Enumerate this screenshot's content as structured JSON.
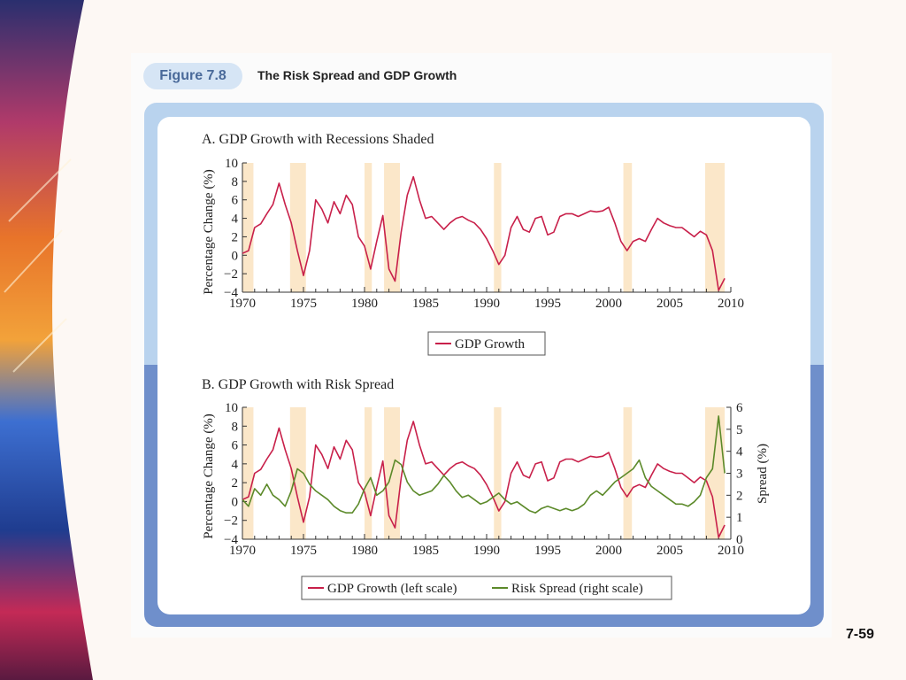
{
  "slide": {
    "page_number": "7-59"
  },
  "figure": {
    "badge": "Figure 7.8",
    "title": "The Risk Spread and GDP Growth"
  },
  "colors": {
    "gdp_line": "#c8204a",
    "spread_line": "#5c8a2a",
    "recession": "#fbe7c9",
    "panel_top": "#b9d3ee",
    "panel_bottom": "#6f8fcb"
  },
  "chart_data": [
    {
      "type": "line",
      "title": "A. GDP Growth with Recessions Shaded",
      "xlabel": "",
      "ylabel": "Percentage Change (%)",
      "xlim": [
        1970,
        2010
      ],
      "ylim": [
        -4,
        10
      ],
      "x_ticks": [
        "1970",
        "1975",
        "1980",
        "1985",
        "1990",
        "1995",
        "2000",
        "2005",
        "2010"
      ],
      "y_ticks": [
        "10",
        "8",
        "6",
        "4",
        "2",
        "0",
        "−2",
        "−4"
      ],
      "recessions": [
        [
          1970.0,
          1970.9
        ],
        [
          1973.9,
          1975.2
        ],
        [
          1980.0,
          1980.6
        ],
        [
          1981.6,
          1982.9
        ],
        [
          1990.6,
          1991.2
        ],
        [
          2001.2,
          2001.9
        ],
        [
          2007.9,
          2009.5
        ]
      ],
      "legend": [
        "GDP Growth"
      ],
      "legend_position": "bottom",
      "series": [
        {
          "name": "GDP Growth",
          "values": [
            [
              1970.0,
              0.2
            ],
            [
              1970.5,
              0.5
            ],
            [
              1971.0,
              3.0
            ],
            [
              1971.5,
              3.4
            ],
            [
              1972.0,
              4.5
            ],
            [
              1972.5,
              5.5
            ],
            [
              1973.0,
              7.8
            ],
            [
              1973.5,
              5.5
            ],
            [
              1974.0,
              3.5
            ],
            [
              1974.5,
              0.5
            ],
            [
              1975.0,
              -2.2
            ],
            [
              1975.5,
              0.5
            ],
            [
              1976.0,
              6.0
            ],
            [
              1976.5,
              5.0
            ],
            [
              1977.0,
              3.5
            ],
            [
              1977.5,
              5.8
            ],
            [
              1978.0,
              4.5
            ],
            [
              1978.5,
              6.5
            ],
            [
              1979.0,
              5.5
            ],
            [
              1979.5,
              2.0
            ],
            [
              1980.0,
              1.0
            ],
            [
              1980.5,
              -1.5
            ],
            [
              1981.0,
              1.5
            ],
            [
              1981.5,
              4.3
            ],
            [
              1982.0,
              -1.5
            ],
            [
              1982.5,
              -2.8
            ],
            [
              1983.0,
              2.5
            ],
            [
              1983.5,
              6.5
            ],
            [
              1984.0,
              8.5
            ],
            [
              1984.5,
              6.0
            ],
            [
              1985.0,
              4.0
            ],
            [
              1985.5,
              4.2
            ],
            [
              1986.0,
              3.5
            ],
            [
              1986.5,
              2.8
            ],
            [
              1987.0,
              3.5
            ],
            [
              1987.5,
              4.0
            ],
            [
              1988.0,
              4.2
            ],
            [
              1988.5,
              3.8
            ],
            [
              1989.0,
              3.5
            ],
            [
              1989.5,
              2.8
            ],
            [
              1990.0,
              1.8
            ],
            [
              1990.5,
              0.5
            ],
            [
              1991.0,
              -1.0
            ],
            [
              1991.5,
              0.0
            ],
            [
              1992.0,
              3.0
            ],
            [
              1992.5,
              4.2
            ],
            [
              1993.0,
              2.8
            ],
            [
              1993.5,
              2.5
            ],
            [
              1994.0,
              4.0
            ],
            [
              1994.5,
              4.2
            ],
            [
              1995.0,
              2.2
            ],
            [
              1995.5,
              2.5
            ],
            [
              1996.0,
              4.2
            ],
            [
              1996.5,
              4.5
            ],
            [
              1997.0,
              4.5
            ],
            [
              1997.5,
              4.2
            ],
            [
              1998.0,
              4.5
            ],
            [
              1998.5,
              4.8
            ],
            [
              1999.0,
              4.7
            ],
            [
              1999.5,
              4.8
            ],
            [
              2000.0,
              5.2
            ],
            [
              2000.5,
              3.5
            ],
            [
              2001.0,
              1.5
            ],
            [
              2001.5,
              0.5
            ],
            [
              2002.0,
              1.5
            ],
            [
              2002.5,
              1.8
            ],
            [
              2003.0,
              1.5
            ],
            [
              2003.5,
              2.8
            ],
            [
              2004.0,
              4.0
            ],
            [
              2004.5,
              3.5
            ],
            [
              2005.0,
              3.2
            ],
            [
              2005.5,
              3.0
            ],
            [
              2006.0,
              3.0
            ],
            [
              2006.5,
              2.5
            ],
            [
              2007.0,
              2.0
            ],
            [
              2007.5,
              2.6
            ],
            [
              2008.0,
              2.2
            ],
            [
              2008.5,
              0.5
            ],
            [
              2009.0,
              -3.8
            ],
            [
              2009.5,
              -2.5
            ]
          ]
        }
      ]
    },
    {
      "type": "line",
      "title": "B. GDP Growth with Risk Spread",
      "xlabel": "",
      "ylabel": "Percentage Change (%)",
      "y2label": "Spread (%)",
      "xlim": [
        1970,
        2010
      ],
      "ylim": [
        -4,
        10
      ],
      "y2lim": [
        0,
        6
      ],
      "x_ticks": [
        "1970",
        "1975",
        "1980",
        "1985",
        "1990",
        "1995",
        "2000",
        "2005",
        "2010"
      ],
      "y_ticks": [
        "10",
        "8",
        "6",
        "4",
        "2",
        "0",
        "−2",
        "−4"
      ],
      "y2_ticks": [
        "6",
        "5",
        "4",
        "3",
        "2",
        "1",
        "0"
      ],
      "recessions": [
        [
          1970.0,
          1970.9
        ],
        [
          1973.9,
          1975.2
        ],
        [
          1980.0,
          1980.6
        ],
        [
          1981.6,
          1982.9
        ],
        [
          1990.6,
          1991.2
        ],
        [
          2001.2,
          2001.9
        ],
        [
          2007.9,
          2009.5
        ]
      ],
      "legend": [
        "GDP Growth (left scale)",
        "Risk Spread (right scale)"
      ],
      "legend_position": "bottom",
      "series": [
        {
          "name": "GDP Growth (left scale)",
          "axis": "left",
          "values": [
            [
              1970.0,
              0.2
            ],
            [
              1970.5,
              0.5
            ],
            [
              1971.0,
              3.0
            ],
            [
              1971.5,
              3.4
            ],
            [
              1972.0,
              4.5
            ],
            [
              1972.5,
              5.5
            ],
            [
              1973.0,
              7.8
            ],
            [
              1973.5,
              5.5
            ],
            [
              1974.0,
              3.5
            ],
            [
              1974.5,
              0.5
            ],
            [
              1975.0,
              -2.2
            ],
            [
              1975.5,
              0.5
            ],
            [
              1976.0,
              6.0
            ],
            [
              1976.5,
              5.0
            ],
            [
              1977.0,
              3.5
            ],
            [
              1977.5,
              5.8
            ],
            [
              1978.0,
              4.5
            ],
            [
              1978.5,
              6.5
            ],
            [
              1979.0,
              5.5
            ],
            [
              1979.5,
              2.0
            ],
            [
              1980.0,
              1.0
            ],
            [
              1980.5,
              -1.5
            ],
            [
              1981.0,
              1.5
            ],
            [
              1981.5,
              4.3
            ],
            [
              1982.0,
              -1.5
            ],
            [
              1982.5,
              -2.8
            ],
            [
              1983.0,
              2.5
            ],
            [
              1983.5,
              6.5
            ],
            [
              1984.0,
              8.5
            ],
            [
              1984.5,
              6.0
            ],
            [
              1985.0,
              4.0
            ],
            [
              1985.5,
              4.2
            ],
            [
              1986.0,
              3.5
            ],
            [
              1986.5,
              2.8
            ],
            [
              1987.0,
              3.5
            ],
            [
              1987.5,
              4.0
            ],
            [
              1988.0,
              4.2
            ],
            [
              1988.5,
              3.8
            ],
            [
              1989.0,
              3.5
            ],
            [
              1989.5,
              2.8
            ],
            [
              1990.0,
              1.8
            ],
            [
              1990.5,
              0.5
            ],
            [
              1991.0,
              -1.0
            ],
            [
              1991.5,
              0.0
            ],
            [
              1992.0,
              3.0
            ],
            [
              1992.5,
              4.2
            ],
            [
              1993.0,
              2.8
            ],
            [
              1993.5,
              2.5
            ],
            [
              1994.0,
              4.0
            ],
            [
              1994.5,
              4.2
            ],
            [
              1995.0,
              2.2
            ],
            [
              1995.5,
              2.5
            ],
            [
              1996.0,
              4.2
            ],
            [
              1996.5,
              4.5
            ],
            [
              1997.0,
              4.5
            ],
            [
              1997.5,
              4.2
            ],
            [
              1998.0,
              4.5
            ],
            [
              1998.5,
              4.8
            ],
            [
              1999.0,
              4.7
            ],
            [
              1999.5,
              4.8
            ],
            [
              2000.0,
              5.2
            ],
            [
              2000.5,
              3.5
            ],
            [
              2001.0,
              1.5
            ],
            [
              2001.5,
              0.5
            ],
            [
              2002.0,
              1.5
            ],
            [
              2002.5,
              1.8
            ],
            [
              2003.0,
              1.5
            ],
            [
              2003.5,
              2.8
            ],
            [
              2004.0,
              4.0
            ],
            [
              2004.5,
              3.5
            ],
            [
              2005.0,
              3.2
            ],
            [
              2005.5,
              3.0
            ],
            [
              2006.0,
              3.0
            ],
            [
              2006.5,
              2.5
            ],
            [
              2007.0,
              2.0
            ],
            [
              2007.5,
              2.6
            ],
            [
              2008.0,
              2.2
            ],
            [
              2008.5,
              0.5
            ],
            [
              2009.0,
              -3.8
            ],
            [
              2009.5,
              -2.5
            ]
          ]
        },
        {
          "name": "Risk Spread (right scale)",
          "axis": "right",
          "values": [
            [
              1970.0,
              1.8
            ],
            [
              1970.5,
              1.5
            ],
            [
              1971.0,
              2.3
            ],
            [
              1971.5,
              2.0
            ],
            [
              1972.0,
              2.5
            ],
            [
              1972.5,
              2.0
            ],
            [
              1973.0,
              1.8
            ],
            [
              1973.5,
              1.5
            ],
            [
              1974.0,
              2.2
            ],
            [
              1974.5,
              3.2
            ],
            [
              1975.0,
              3.0
            ],
            [
              1975.5,
              2.5
            ],
            [
              1976.0,
              2.2
            ],
            [
              1976.5,
              2.0
            ],
            [
              1977.0,
              1.8
            ],
            [
              1977.5,
              1.5
            ],
            [
              1978.0,
              1.3
            ],
            [
              1978.5,
              1.2
            ],
            [
              1979.0,
              1.2
            ],
            [
              1979.5,
              1.6
            ],
            [
              1980.0,
              2.3
            ],
            [
              1980.5,
              2.8
            ],
            [
              1981.0,
              2.0
            ],
            [
              1981.5,
              2.2
            ],
            [
              1982.0,
              2.6
            ],
            [
              1982.5,
              3.6
            ],
            [
              1983.0,
              3.4
            ],
            [
              1983.5,
              2.6
            ],
            [
              1984.0,
              2.2
            ],
            [
              1984.5,
              2.0
            ],
            [
              1985.0,
              2.1
            ],
            [
              1985.5,
              2.2
            ],
            [
              1986.0,
              2.5
            ],
            [
              1986.5,
              2.9
            ],
            [
              1987.0,
              2.6
            ],
            [
              1987.5,
              2.2
            ],
            [
              1988.0,
              1.9
            ],
            [
              1988.5,
              2.0
            ],
            [
              1989.0,
              1.8
            ],
            [
              1989.5,
              1.6
            ],
            [
              1990.0,
              1.7
            ],
            [
              1990.5,
              1.9
            ],
            [
              1991.0,
              2.1
            ],
            [
              1991.5,
              1.8
            ],
            [
              1992.0,
              1.6
            ],
            [
              1992.5,
              1.7
            ],
            [
              1993.0,
              1.5
            ],
            [
              1993.5,
              1.3
            ],
            [
              1994.0,
              1.2
            ],
            [
              1994.5,
              1.4
            ],
            [
              1995.0,
              1.5
            ],
            [
              1995.5,
              1.4
            ],
            [
              1996.0,
              1.3
            ],
            [
              1996.5,
              1.4
            ],
            [
              1997.0,
              1.3
            ],
            [
              1997.5,
              1.4
            ],
            [
              1998.0,
              1.6
            ],
            [
              1998.5,
              2.0
            ],
            [
              1999.0,
              2.2
            ],
            [
              1999.5,
              2.0
            ],
            [
              2000.0,
              2.3
            ],
            [
              2000.5,
              2.6
            ],
            [
              2001.0,
              2.8
            ],
            [
              2001.5,
              3.0
            ],
            [
              2002.0,
              3.2
            ],
            [
              2002.5,
              3.6
            ],
            [
              2003.0,
              2.8
            ],
            [
              2003.5,
              2.4
            ],
            [
              2004.0,
              2.2
            ],
            [
              2004.5,
              2.0
            ],
            [
              2005.0,
              1.8
            ],
            [
              2005.5,
              1.6
            ],
            [
              2006.0,
              1.6
            ],
            [
              2006.5,
              1.5
            ],
            [
              2007.0,
              1.7
            ],
            [
              2007.5,
              2.0
            ],
            [
              2008.0,
              2.8
            ],
            [
              2008.5,
              3.2
            ],
            [
              2009.0,
              5.6
            ],
            [
              2009.5,
              3.0
            ]
          ]
        }
      ]
    }
  ]
}
